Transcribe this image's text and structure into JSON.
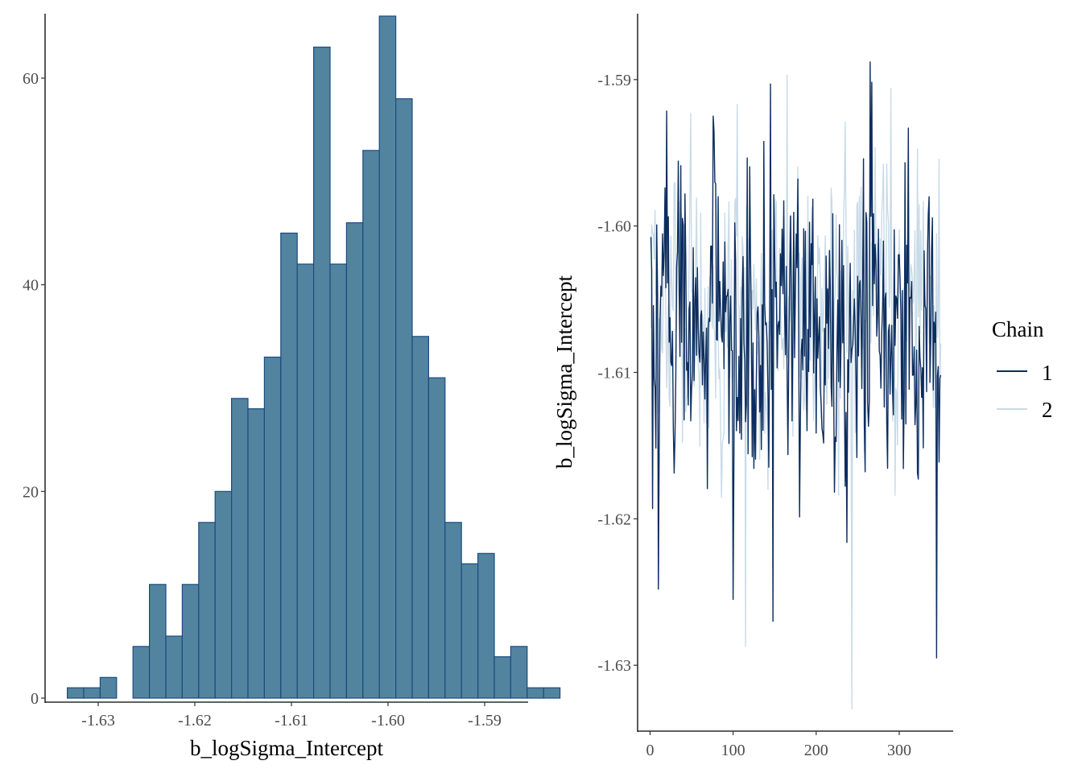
{
  "colors": {
    "hist_fill": "#52849f",
    "hist_stroke": "#1b4b7f",
    "chain_1": "#0c2d5e",
    "chain_2": "#c9dbe8",
    "axis": "#000000",
    "tick_text": "#4d4d4d"
  },
  "chart_data": [
    {
      "type": "bar",
      "subtype": "histogram",
      "title": "",
      "xlabel": "b_logSigma_Intercept",
      "ylabel": "",
      "xlim": [
        -1.6355,
        -1.5855
      ],
      "ylim": [
        0,
        66
      ],
      "x_ticks": [
        -1.63,
        -1.62,
        -1.61,
        -1.6,
        -1.59
      ],
      "x_tick_labels": [
        "-1.63",
        "-1.62",
        "-1.61",
        "-1.60",
        "-1.59"
      ],
      "y_ticks": [
        0,
        20,
        40,
        60
      ],
      "y_tick_labels": [
        "0",
        "20",
        "40",
        "60"
      ],
      "grid": false,
      "bins": [
        {
          "x0": -1.6332,
          "x1": -1.6315,
          "count": 1
        },
        {
          "x0": -1.6315,
          "x1": -1.6298,
          "count": 1
        },
        {
          "x0": -1.6298,
          "x1": -1.6281,
          "count": 2
        },
        {
          "x0": -1.6281,
          "x1": -1.6264,
          "count": 0
        },
        {
          "x0": -1.6264,
          "x1": -1.6247,
          "count": 5
        },
        {
          "x0": -1.6247,
          "x1": -1.623,
          "count": 11
        },
        {
          "x0": -1.623,
          "x1": -1.6213,
          "count": 6
        },
        {
          "x0": -1.6213,
          "x1": -1.6196,
          "count": 11
        },
        {
          "x0": -1.6196,
          "x1": -1.6179,
          "count": 17
        },
        {
          "x0": -1.6179,
          "x1": -1.6162,
          "count": 20
        },
        {
          "x0": -1.6162,
          "x1": -1.6145,
          "count": 29
        },
        {
          "x0": -1.6145,
          "x1": -1.6128,
          "count": 28
        },
        {
          "x0": -1.6128,
          "x1": -1.6111,
          "count": 33
        },
        {
          "x0": -1.6111,
          "x1": -1.6094,
          "count": 45
        },
        {
          "x0": -1.6094,
          "x1": -1.6077,
          "count": 42
        },
        {
          "x0": -1.6077,
          "x1": -1.606,
          "count": 63
        },
        {
          "x0": -1.606,
          "x1": -1.6043,
          "count": 42
        },
        {
          "x0": -1.6043,
          "x1": -1.6026,
          "count": 46
        },
        {
          "x0": -1.6026,
          "x1": -1.6009,
          "count": 53
        },
        {
          "x0": -1.6009,
          "x1": -1.5992,
          "count": 66
        },
        {
          "x0": -1.5992,
          "x1": -1.5975,
          "count": 58
        },
        {
          "x0": -1.5975,
          "x1": -1.5958,
          "count": 35
        },
        {
          "x0": -1.5958,
          "x1": -1.5941,
          "count": 31
        },
        {
          "x0": -1.5941,
          "x1": -1.5924,
          "count": 17
        },
        {
          "x0": -1.5924,
          "x1": -1.5907,
          "count": 13
        },
        {
          "x0": -1.5907,
          "x1": -1.589,
          "count": 14
        },
        {
          "x0": -1.589,
          "x1": -1.5873,
          "count": 4
        },
        {
          "x0": -1.5873,
          "x1": -1.5856,
          "count": 5
        },
        {
          "x0": -1.5856,
          "x1": -1.5839,
          "count": 1
        },
        {
          "x0": -1.5839,
          "x1": -1.5822,
          "count": 1
        }
      ]
    },
    {
      "type": "line",
      "subtype": "trace",
      "title": "",
      "xlabel": "",
      "ylabel": "b_logSigma_Intercept",
      "xlim": [
        -15,
        365
      ],
      "ylim": [
        -1.6345,
        -1.5855
      ],
      "x_ticks": [
        0,
        100,
        200,
        300
      ],
      "x_tick_labels": [
        "0",
        "100",
        "200",
        "300"
      ],
      "y_ticks": [
        -1.59,
        -1.6,
        -1.61,
        -1.62,
        -1.63
      ],
      "y_tick_labels": [
        "-1.59",
        "-1.60",
        "-1.61",
        "-1.62",
        "-1.63"
      ],
      "grid": false,
      "n_iterations": 350,
      "legend": {
        "title": "Chain",
        "position": "right",
        "entries": [
          {
            "label": "1",
            "color_key": "chain_1"
          },
          {
            "label": "2",
            "color_key": "chain_2"
          }
        ]
      },
      "series": [
        {
          "name": "1",
          "x_start": 1,
          "y_range_observed": [
            -1.6295,
            -1.5886
          ],
          "notable_points": [
            {
              "x": 3,
              "y": -1.6193
            },
            {
              "x": 10,
              "y": -1.6248
            },
            {
              "x": 100,
              "y": -1.6255
            },
            {
              "x": 145,
              "y": -1.5903
            },
            {
              "x": 148,
              "y": -1.627
            },
            {
              "x": 265,
              "y": -1.5888
            },
            {
              "x": 345,
              "y": -1.6295
            }
          ]
        },
        {
          "name": "2",
          "x_start": 1,
          "y_range_observed": [
            -1.633,
            -1.5896
          ],
          "notable_points": [
            {
              "x": 105,
              "y": -1.5917
            },
            {
              "x": 115,
              "y": -1.6287
            },
            {
              "x": 165,
              "y": -1.5897
            },
            {
              "x": 243,
              "y": -1.633
            },
            {
              "x": 290,
              "y": -1.5906
            }
          ]
        }
      ]
    }
  ]
}
